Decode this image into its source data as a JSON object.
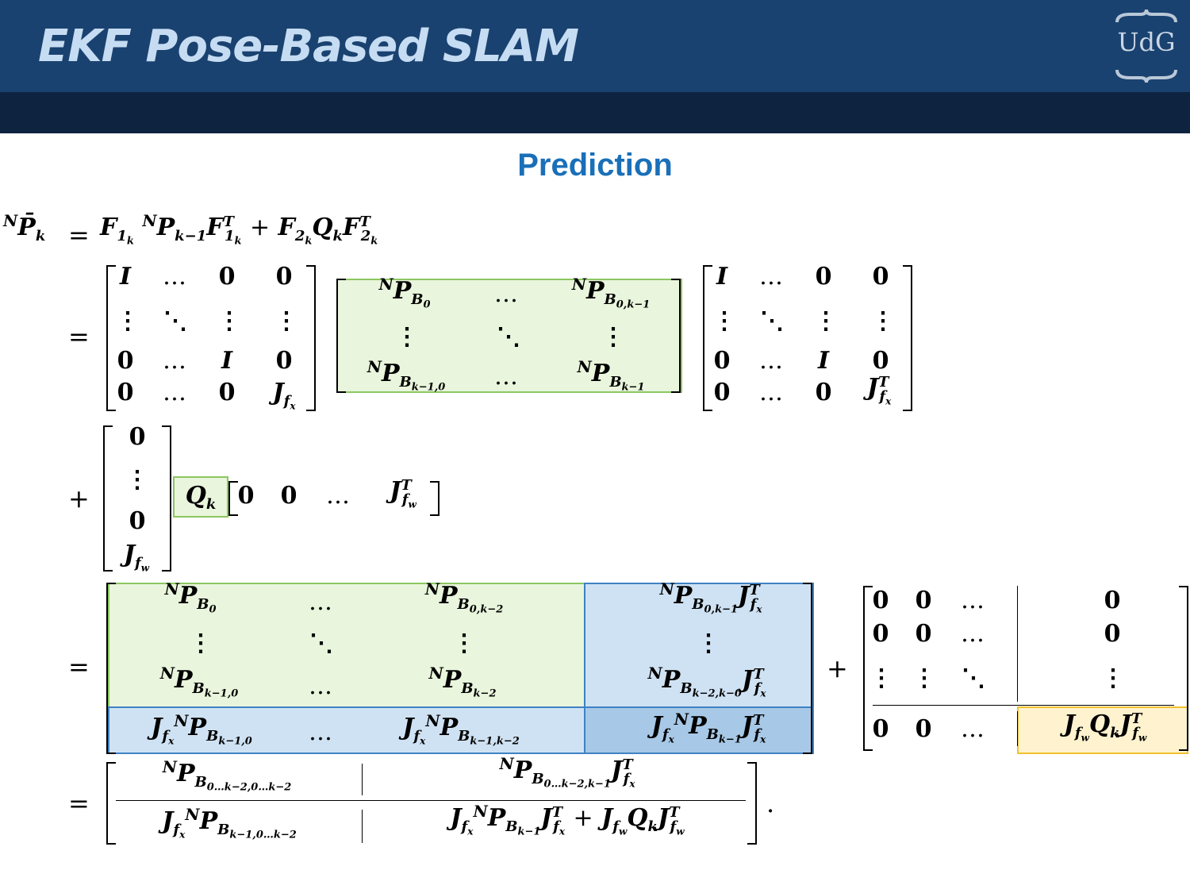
{
  "header": {
    "title": "EKF Pose-Based SLAM",
    "logo_text": "UdG",
    "bg_color": "#1a4270",
    "band_color": "#0e2340"
  },
  "section": {
    "title": "Prediction"
  },
  "equation": {
    "line0": {
      "lhs": "ᴺP̄ₖ",
      "eq": "=",
      "rhs": "F₁ₖ ᴺPₖ₋₁ F₁ₖᵀ + F₂ₖ Qₖ F₂ₖᵀ"
    },
    "line1": {
      "eq": "=",
      "F1": [
        [
          "I",
          "...",
          "0",
          "0"
        ],
        [
          ":",
          "⋱",
          ":",
          ":"
        ],
        [
          "0",
          "...",
          "I",
          "0"
        ],
        [
          "0",
          "...",
          "0",
          "J_fx"
        ]
      ],
      "P": [
        [
          "ᴺP_B0",
          "...",
          "ᴺP_B0,k−1"
        ],
        [
          ":",
          "⋱",
          ":"
        ],
        [
          "ᴺP_Bk−1,0",
          "...",
          "ᴺP_Bk−1"
        ]
      ],
      "F1T": [
        [
          "I",
          "...",
          "0",
          "0"
        ],
        [
          ":",
          "⋱",
          ":",
          ":"
        ],
        [
          "0",
          "...",
          "I",
          "0"
        ],
        [
          "0",
          "...",
          "0",
          "J_fxᵀ"
        ]
      ]
    },
    "line2": {
      "plus": "+",
      "F2": [
        "0",
        ":",
        "0",
        "J_fw"
      ],
      "Q": "Qₖ",
      "F2T": [
        "0",
        "0",
        "...",
        "J_fwᵀ"
      ]
    },
    "line3": {
      "eq": "=",
      "plus": "+"
    },
    "line4": {
      "eq": "=",
      "period": "."
    }
  }
}
